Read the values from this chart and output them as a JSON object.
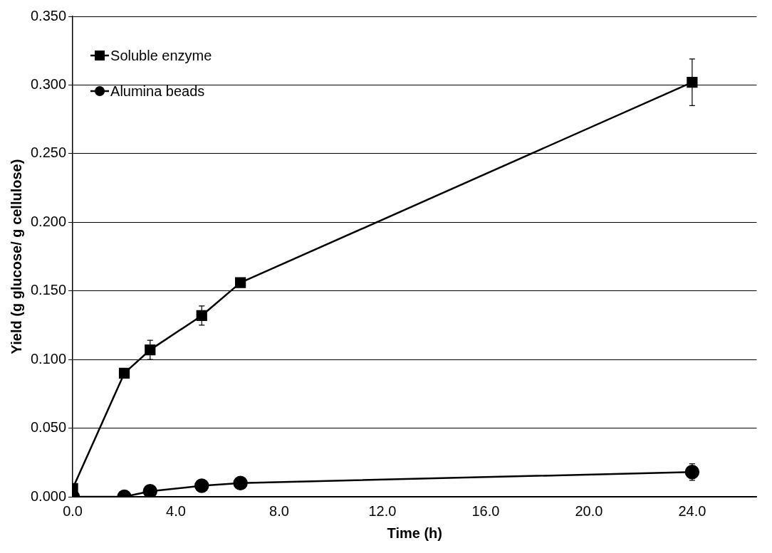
{
  "chart_data": {
    "type": "line",
    "xlabel": "Time (h)",
    "ylabel": "Yield (g glucose/ g cellulose)",
    "x": [
      0,
      2,
      3,
      5,
      6.5,
      24
    ],
    "series": [
      {
        "name": "Soluble enzyme",
        "color": "#000000",
        "marker": "square",
        "values": [
          0.006,
          0.09,
          0.107,
          0.132,
          0.156,
          0.302
        ],
        "errors": [
          null,
          null,
          0.007,
          0.007,
          null,
          0.017
        ]
      },
      {
        "name": "Alumina beads",
        "color": "#000000",
        "marker": "circle",
        "values": [
          0.0,
          0.0,
          0.004,
          0.008,
          0.01,
          0.018
        ],
        "errors": [
          null,
          null,
          null,
          null,
          null,
          0.006
        ]
      }
    ],
    "xlim": [
      0,
      26.5
    ],
    "xticks": [
      {
        "value": 0,
        "label": "0.0"
      },
      {
        "value": 4,
        "label": "4.0"
      },
      {
        "value": 8,
        "label": "8.0"
      },
      {
        "value": 12,
        "label": "12.0"
      },
      {
        "value": 16,
        "label": "16.0"
      },
      {
        "value": 20,
        "label": "20.0"
      },
      {
        "value": 24,
        "label": "24.0"
      }
    ],
    "ylim": [
      0,
      0.35
    ],
    "yticks": [
      {
        "value": 0,
        "label": "0.000"
      },
      {
        "value": 0.05,
        "label": "0.050"
      },
      {
        "value": 0.1,
        "label": "0.100"
      },
      {
        "value": 0.15,
        "label": "0.150"
      },
      {
        "value": 0.2,
        "label": "0.200"
      },
      {
        "value": 0.25,
        "label": "0.250"
      },
      {
        "value": 0.3,
        "label": "0.300"
      },
      {
        "value": 0.35,
        "label": "0.350"
      }
    ],
    "grid": "y",
    "legend": "top left",
    "line_style": "solid"
  }
}
